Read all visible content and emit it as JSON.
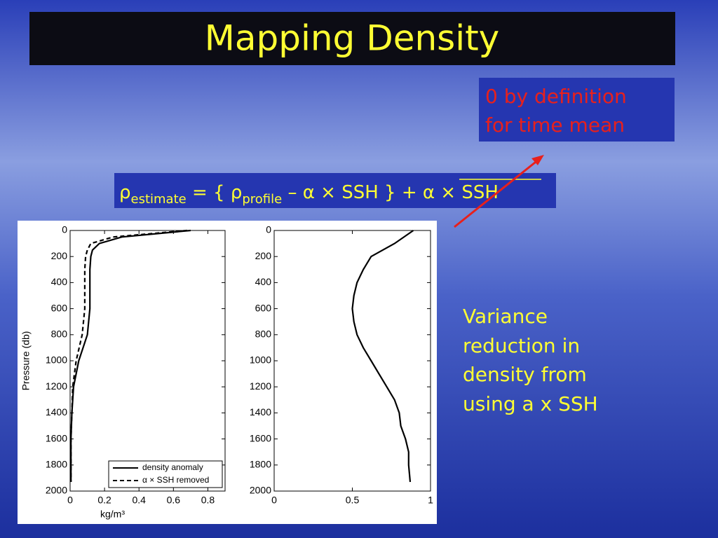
{
  "slide": {
    "title": "Mapping Density",
    "note": [
      "0 by definition",
      "for time mean"
    ],
    "formula": {
      "rho1": "ρ",
      "sub1": "estimate",
      "mid1": " = { ρ",
      "sub2": "profile",
      "mid2": " – α × SSH } + ",
      "mean_term": "α × SSH"
    },
    "comment": [
      "Variance",
      "reduction in",
      "density from",
      "using a x SSH"
    ]
  },
  "chart_data": [
    {
      "type": "line",
      "xlabel": "kg/m³",
      "ylabel": "Pressure (db)",
      "y": [
        0,
        50,
        100,
        150,
        200,
        300,
        400,
        600,
        800,
        1000,
        1200,
        1400,
        1600,
        1800,
        1930
      ],
      "series": [
        {
          "name": "density anomaly",
          "color": "#000000",
          "dash": false,
          "values": [
            0.7,
            0.3,
            0.17,
            0.13,
            0.12,
            0.115,
            0.115,
            0.115,
            0.1,
            0.05,
            0.02,
            0.01,
            0.005,
            0.005,
            0.005
          ]
        },
        {
          "name": "α × SSH removed",
          "color": "#000000",
          "dash": true,
          "values": [
            0.68,
            0.25,
            0.12,
            0.1,
            0.09,
            0.085,
            0.085,
            0.085,
            0.07,
            0.035,
            0.015,
            0.01,
            0.005,
            0.005,
            0.005
          ]
        }
      ],
      "xlim": [
        0,
        0.9
      ],
      "xticks": [
        0,
        0.2,
        0.4,
        0.6,
        0.8
      ],
      "ylim": [
        0,
        2000
      ],
      "yticks": [
        0,
        200,
        400,
        600,
        800,
        1000,
        1200,
        1400,
        1600,
        1800,
        2000
      ],
      "y_inverted": true,
      "legend": "lower-right"
    },
    {
      "type": "line",
      "y": [
        0,
        100,
        200,
        300,
        400,
        500,
        600,
        700,
        800,
        900,
        1000,
        1100,
        1200,
        1300,
        1400,
        1500,
        1600,
        1700,
        1800,
        1930
      ],
      "series": [
        {
          "color": "#000000",
          "dash": false,
          "values": [
            0.89,
            0.77,
            0.62,
            0.57,
            0.53,
            0.51,
            0.5,
            0.51,
            0.53,
            0.57,
            0.62,
            0.67,
            0.72,
            0.77,
            0.8,
            0.81,
            0.84,
            0.86,
            0.86,
            0.87
          ]
        }
      ],
      "xlim": [
        0,
        1
      ],
      "xticks": [
        0,
        0.5,
        1
      ],
      "ylim": [
        0,
        2000
      ],
      "yticks": [
        0,
        200,
        400,
        600,
        800,
        1000,
        1200,
        1400,
        1600,
        1800,
        2000
      ],
      "y_inverted": true
    }
  ]
}
